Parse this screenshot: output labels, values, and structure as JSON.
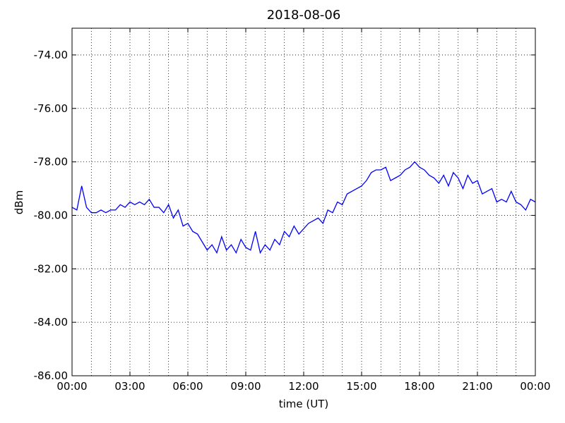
{
  "chart_data": {
    "type": "line",
    "title": "2018-08-06",
    "x_label": "time (UT)",
    "y_label": "dBm",
    "xlim": [
      0,
      24
    ],
    "ylim": [
      -86,
      -73
    ],
    "xticks": [
      {
        "value": 0,
        "label": "00:00"
      },
      {
        "value": 3,
        "label": "03:00"
      },
      {
        "value": 6,
        "label": "06:00"
      },
      {
        "value": 9,
        "label": "09:00"
      },
      {
        "value": 12,
        "label": "12:00"
      },
      {
        "value": 15,
        "label": "15:00"
      },
      {
        "value": 18,
        "label": "18:00"
      },
      {
        "value": 21,
        "label": "21:00"
      },
      {
        "value": 24,
        "label": "00:00"
      }
    ],
    "xminor_ticks": [
      1,
      2,
      4,
      5,
      7,
      8,
      10,
      11,
      13,
      14,
      16,
      17,
      19,
      20,
      22,
      23
    ],
    "yticks": [
      {
        "value": -86,
        "label": "-86.00"
      },
      {
        "value": -84,
        "label": "-84.00"
      },
      {
        "value": -82,
        "label": "-82.00"
      },
      {
        "value": -80,
        "label": "-80.00"
      },
      {
        "value": -78,
        "label": "-78.00"
      },
      {
        "value": -76,
        "label": "-76.00"
      },
      {
        "value": -74,
        "label": "-74.00"
      }
    ],
    "grid": true,
    "x": [
      0,
      0.25,
      0.5,
      0.75,
      1,
      1.25,
      1.5,
      1.75,
      2,
      2.25,
      2.5,
      2.75,
      3,
      3.25,
      3.5,
      3.75,
      4,
      4.25,
      4.5,
      4.75,
      5,
      5.25,
      5.5,
      5.75,
      6,
      6.25,
      6.5,
      6.75,
      7,
      7.25,
      7.5,
      7.75,
      8,
      8.25,
      8.5,
      8.75,
      9,
      9.25,
      9.5,
      9.75,
      10,
      10.25,
      10.5,
      10.75,
      11,
      11.25,
      11.5,
      11.75,
      12,
      12.25,
      12.5,
      12.75,
      13,
      13.25,
      13.5,
      13.75,
      14,
      14.25,
      14.5,
      14.75,
      15,
      15.25,
      15.5,
      15.75,
      16,
      16.25,
      16.5,
      16.75,
      17,
      17.25,
      17.5,
      17.75,
      18,
      18.25,
      18.5,
      18.75,
      19,
      19.25,
      19.5,
      19.75,
      20,
      20.25,
      20.5,
      20.75,
      21,
      21.25,
      21.5,
      21.75,
      22,
      22.25,
      22.5,
      22.75,
      23,
      23.25,
      23.5,
      23.75,
      24
    ],
    "series": [
      {
        "color": "#0000ff",
        "values": [
          -79.7,
          -79.8,
          -78.9,
          -79.7,
          -79.9,
          -79.9,
          -79.8,
          -79.9,
          -79.8,
          -79.8,
          -79.6,
          -79.7,
          -79.5,
          -79.6,
          -79.5,
          -79.6,
          -79.4,
          -79.7,
          -79.7,
          -79.9,
          -79.6,
          -80.1,
          -79.8,
          -80.4,
          -80.3,
          -80.6,
          -80.7,
          -81.0,
          -81.3,
          -81.1,
          -81.4,
          -80.8,
          -81.3,
          -81.1,
          -81.4,
          -80.9,
          -81.2,
          -81.3,
          -80.6,
          -81.4,
          -81.1,
          -81.3,
          -80.9,
          -81.1,
          -80.6,
          -80.8,
          -80.4,
          -80.7,
          -80.5,
          -80.3,
          -80.2,
          -80.1,
          -80.3,
          -79.8,
          -79.9,
          -79.5,
          -79.6,
          -79.2,
          -79.1,
          -79.0,
          -78.9,
          -78.7,
          -78.4,
          -78.3,
          -78.3,
          -78.2,
          -78.7,
          -78.6,
          -78.5,
          -78.3,
          -78.2,
          -78.0,
          -78.2,
          -78.3,
          -78.5,
          -78.6,
          -78.8,
          -78.5,
          -78.9,
          -78.4,
          -78.6,
          -79.0,
          -78.5,
          -78.8,
          -78.7,
          -79.2,
          -79.1,
          -79.0,
          -79.5,
          -79.4,
          -79.5,
          -79.1,
          -79.5,
          -79.6,
          -79.8,
          -79.4,
          -79.5
        ]
      }
    ]
  }
}
